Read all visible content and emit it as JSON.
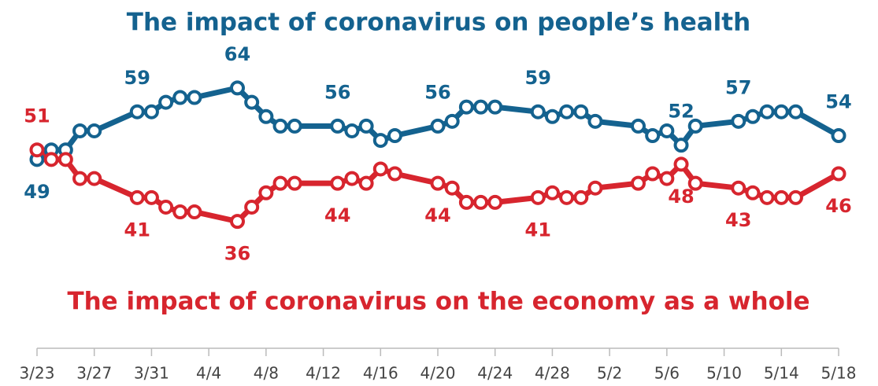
{
  "chart_data": {
    "type": "line",
    "x": [
      "3/23",
      "3/24",
      "3/25",
      "3/26",
      "3/27",
      "3/30",
      "3/31",
      "4/1",
      "4/2",
      "4/3",
      "4/6",
      "4/7",
      "4/8",
      "4/9",
      "4/10",
      "4/13",
      "4/14",
      "4/15",
      "4/16",
      "4/17",
      "4/20",
      "4/21",
      "4/22",
      "4/23",
      "4/24",
      "4/27",
      "4/28",
      "4/29",
      "4/30",
      "5/1",
      "5/4",
      "5/5",
      "5/6",
      "5/7",
      "5/8",
      "5/11",
      "5/12",
      "5/13",
      "5/14",
      "5/15",
      "5/18"
    ],
    "xlim": [
      "3/23",
      "5/18"
    ],
    "xticks": [
      "3/23",
      "3/27",
      "3/31",
      "4/4",
      "4/8",
      "4/12",
      "4/16",
      "4/20",
      "4/24",
      "4/28",
      "5/2",
      "5/6",
      "5/10",
      "5/14",
      "5/18"
    ],
    "ylim": [
      30,
      70
    ],
    "series": [
      {
        "name": "The impact of coronavirus on people’s health",
        "color": "#14628f",
        "values": [
          49,
          51,
          51,
          55,
          55,
          59,
          59,
          61,
          62,
          62,
          64,
          61,
          58,
          56,
          56,
          56,
          55,
          56,
          53,
          54,
          56,
          57,
          60,
          60,
          60,
          59,
          58,
          59,
          59,
          57,
          56,
          54,
          55,
          52,
          56,
          57,
          58,
          59,
          59,
          59,
          54
        ],
        "value_labels": [
          "49",
          null,
          null,
          null,
          null,
          "59",
          null,
          null,
          null,
          null,
          "64",
          null,
          null,
          null,
          null,
          "56",
          null,
          null,
          null,
          null,
          "56",
          null,
          null,
          null,
          null,
          "59",
          null,
          null,
          null,
          null,
          null,
          null,
          null,
          "52",
          null,
          "57",
          null,
          null,
          null,
          null,
          "54"
        ]
      },
      {
        "name": "The impact of coronavirus on the economy as a whole",
        "color": "#d7252e",
        "values": [
          51,
          49,
          49,
          45,
          45,
          41,
          41,
          39,
          38,
          38,
          36,
          39,
          42,
          44,
          44,
          44,
          45,
          44,
          47,
          46,
          44,
          43,
          40,
          40,
          40,
          41,
          42,
          41,
          41,
          43,
          44,
          46,
          45,
          48,
          44,
          43,
          42,
          41,
          41,
          41,
          46
        ],
        "value_labels": [
          "51",
          null,
          null,
          null,
          null,
          "41",
          null,
          null,
          null,
          null,
          "36",
          null,
          null,
          null,
          null,
          "44",
          null,
          null,
          null,
          null,
          "44",
          null,
          null,
          null,
          null,
          "41",
          null,
          null,
          null,
          null,
          null,
          null,
          null,
          "48",
          null,
          "43",
          null,
          null,
          null,
          null,
          "46"
        ]
      }
    ]
  }
}
